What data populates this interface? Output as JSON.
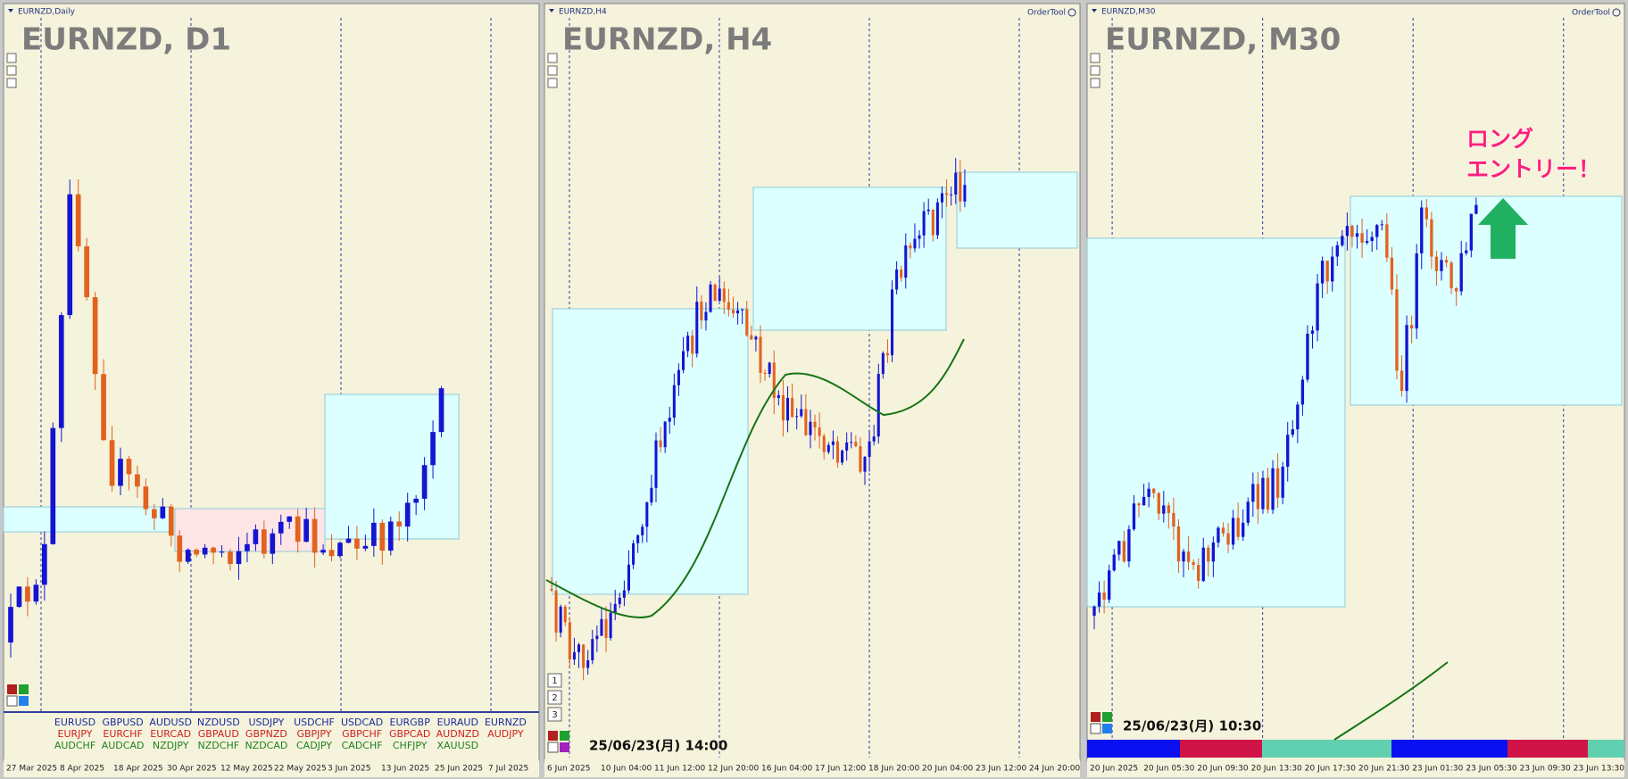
{
  "panels": [
    {
      "window_title": "EURNZD,Daily",
      "symbol_label": "EURNZD, D1",
      "x_labels": [
        "27 Mar 2025",
        "8 Apr 2025",
        "18 Apr 2025",
        "30 Apr 2025",
        "12 May 2025",
        "22 May 2025",
        "3 Jun 2025",
        "13 Jun 2025",
        "25 Jun 2025",
        "7 Jul 2025"
      ],
      "symbols": [
        [
          "EURUSD",
          "GBPUSD",
          "AUDUSD",
          "NZDUSD",
          "USDJPY",
          "USDCHF",
          "USDCAD",
          "EURGBP",
          "EURAUD",
          "EURNZD"
        ],
        [
          "EURJPY",
          "EURCHF",
          "EURCAD",
          "GBPAUD",
          "GBPNZD",
          "GBPJPY",
          "GBPCHF",
          "GBPCAD",
          "AUDNZD",
          "AUDJPY"
        ],
        [
          "AUDCHF",
          "AUDCAD",
          "NZDJPY",
          "NZDCHF",
          "NZDCAD",
          "CADJPY",
          "CADCHF",
          "CHFJPY",
          "XAUUSD"
        ]
      ]
    },
    {
      "window_title": "EURNZD,H4",
      "tool": "OrderTool",
      "symbol_label": "EURNZD, H4",
      "timestamp": "25/06/23(月) 14:00",
      "buttons": [
        "1",
        "2",
        "3"
      ],
      "x_labels": [
        "6 Jun 2025",
        "10 Jun 04:00",
        "11 Jun 12:00",
        "12 Jun 20:00",
        "16 Jun 04:00",
        "17 Jun 12:00",
        "18 Jun 20:00",
        "20 Jun 04:00",
        "23 Jun 12:00",
        "24 Jun 20:00"
      ]
    },
    {
      "window_title": "EURNZD,M30",
      "tool": "OrderTool",
      "symbol_label": "EURNZD, M30",
      "timestamp": "25/06/23(月) 10:30",
      "annotation": [
        "ロング",
        "エントリー！"
      ],
      "x_labels": [
        "20 Jun 2025",
        "20 Jun 05:30",
        "20 Jun 09:30",
        "20 Jun 13:30",
        "20 Jun 17:30",
        "20 Jun 21:30",
        "23 Jun 01:30",
        "23 Jun 05:30",
        "23 Jun 09:30",
        "23 Jun 13:30"
      ]
    }
  ]
}
